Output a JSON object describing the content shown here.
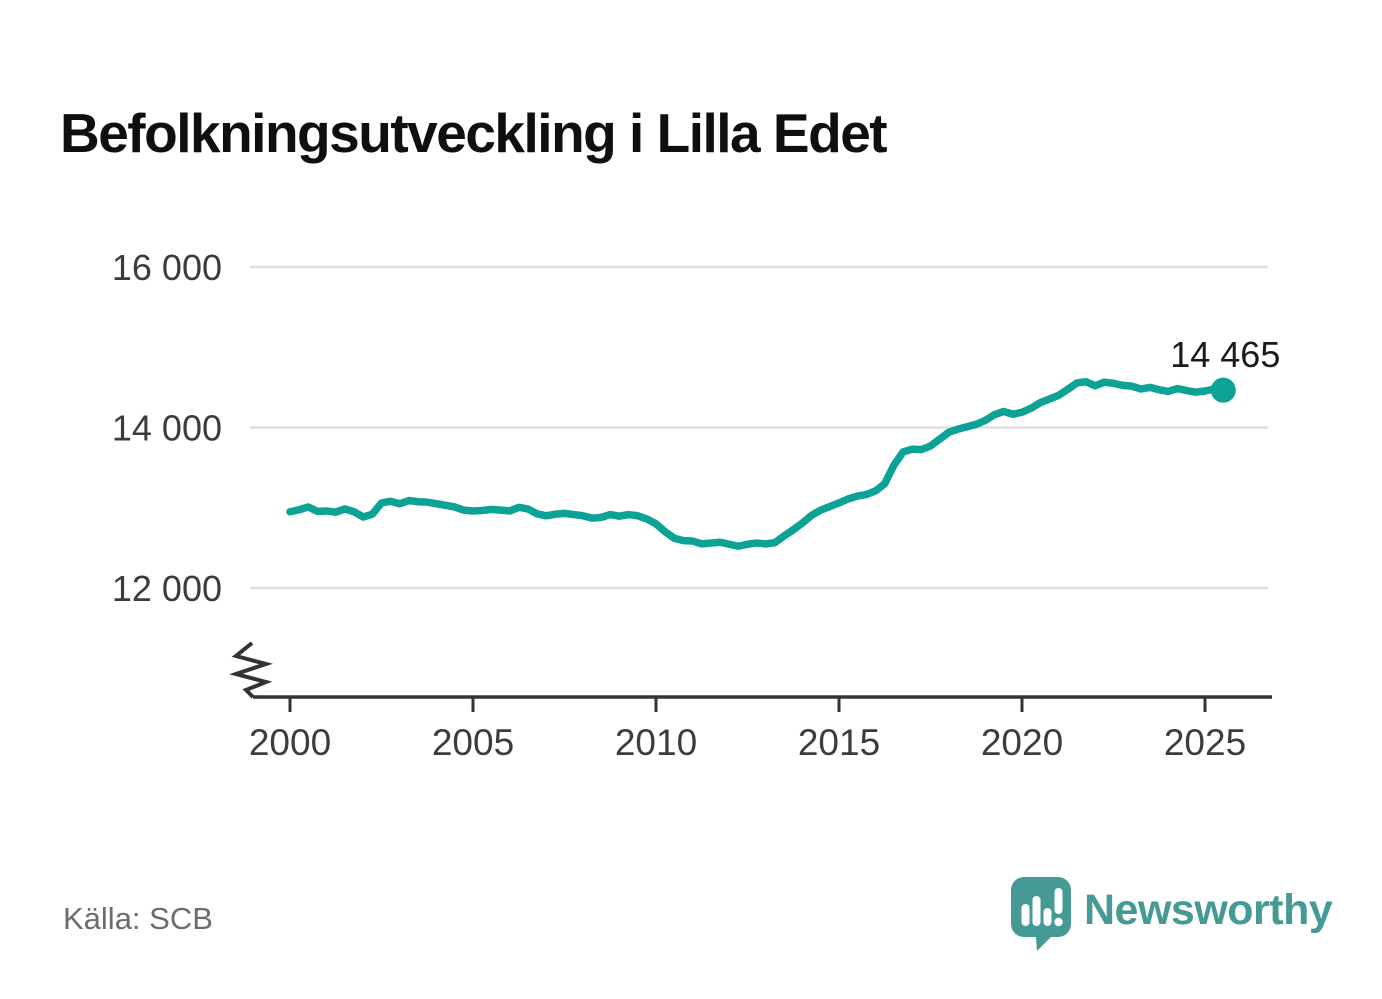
{
  "title": "Befolkningsutveckling i Lilla Edet",
  "source": {
    "label": "Källa: SCB"
  },
  "branding": {
    "name": "Newsworthy",
    "icon": "newsworthy-speech-bubble-barchart-icon",
    "color": "#469a95"
  },
  "colors": {
    "line": "#0da296",
    "grid": "#e0e0e0",
    "axis": "#333333",
    "tick_text": "#3c3c3c",
    "title": "#0f0f0f",
    "annotation": "#1a1a1a",
    "source": "#6d6d6d",
    "background": "#ffffff"
  },
  "chart_data": {
    "type": "line",
    "title": "Befolkningsutveckling i Lilla Edet",
    "xlabel": "",
    "ylabel": "",
    "legend": "none",
    "grid": "horizontal",
    "y_axis_break": true,
    "xlim": [
      1999.0,
      2026.8
    ],
    "ylim_displayed": [
      12000,
      16000
    ],
    "y_ticks": [
      {
        "value": 16000,
        "label": "16 000"
      },
      {
        "value": 14000,
        "label": "14 000"
      },
      {
        "value": 12000,
        "label": "12 000"
      }
    ],
    "x_ticks": [
      {
        "value": 2000,
        "label": "2000"
      },
      {
        "value": 2005,
        "label": "2005"
      },
      {
        "value": 2010,
        "label": "2010"
      },
      {
        "value": 2015,
        "label": "2015"
      },
      {
        "value": 2020,
        "label": "2020"
      },
      {
        "value": 2025,
        "label": "2025"
      }
    ],
    "end_label": "14 465",
    "end_value": 14465,
    "series": [
      {
        "name": "Befolkning",
        "frequency": "quarterly",
        "x_start": 2000.0,
        "x_step": 0.25,
        "values": [
          12950,
          12975,
          13010,
          12955,
          12960,
          12945,
          12985,
          12950,
          12885,
          12920,
          13060,
          13080,
          13050,
          13090,
          13075,
          13070,
          13050,
          13030,
          13010,
          12970,
          12960,
          12965,
          12980,
          12970,
          12960,
          13005,
          12985,
          12925,
          12900,
          12920,
          12930,
          12915,
          12900,
          12870,
          12880,
          12915,
          12895,
          12915,
          12900,
          12860,
          12800,
          12700,
          12620,
          12590,
          12585,
          12550,
          12560,
          12570,
          12545,
          12520,
          12545,
          12560,
          12550,
          12565,
          12650,
          12725,
          12810,
          12905,
          12970,
          13015,
          13060,
          13110,
          13145,
          13165,
          13210,
          13300,
          13530,
          13695,
          13730,
          13725,
          13770,
          13855,
          13940,
          13980,
          14010,
          14040,
          14090,
          14160,
          14200,
          14165,
          14190,
          14240,
          14310,
          14355,
          14400,
          14475,
          14555,
          14570,
          14520,
          14565,
          14550,
          14525,
          14515,
          14480,
          14500,
          14470,
          14450,
          14485,
          14460,
          14440,
          14455,
          14480,
          14465
        ]
      }
    ]
  }
}
